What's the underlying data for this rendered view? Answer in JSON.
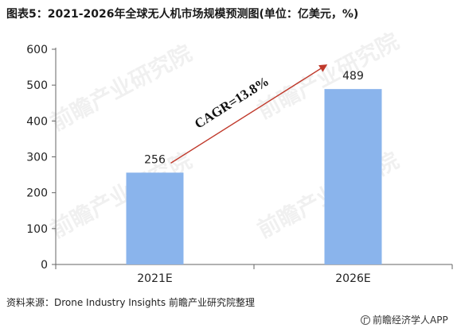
{
  "title": "图表5：2021-2026年全球无人机市场规模预测图(单位：亿美元，%)",
  "source": "资料来源：Drone Industry Insights 前瞻产业研究院整理",
  "brand": "前瞻经济学人APP",
  "watermark": "前瞻产业研究院",
  "colors": {
    "bar": "#8ab4ec",
    "arrow": "#c0392b",
    "axis": "#666666"
  },
  "chart_data": {
    "type": "bar",
    "categories": [
      "2021E",
      "2026E"
    ],
    "values": [
      256,
      489
    ],
    "data_labels": [
      "256",
      "489"
    ],
    "ylim": [
      0,
      600
    ],
    "yticks": [
      0,
      100,
      200,
      300,
      400,
      500,
      600
    ],
    "grid": false,
    "annotation": {
      "text": "CAGR=13.8%",
      "from": "2021E",
      "to": "2026E"
    }
  }
}
